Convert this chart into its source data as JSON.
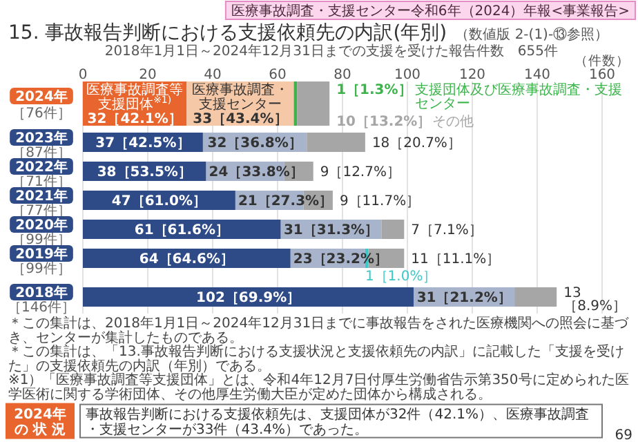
{
  "chart_data": {
    "type": "bar",
    "orientation": "horizontal",
    "stacked": true,
    "title": "15. 事故報告判断における支援依頼先の内訳(年別)",
    "subtitle": "（数値版 2-(1)-⑬参照）",
    "xlabel": "（件数）",
    "categories": [
      "2024年［76件］",
      "2023年［87件］",
      "2022年［71件］",
      "2021年［77件］",
      "2020年［99件］",
      "2019年［99件］",
      "2018年［146件］"
    ],
    "xlim": [
      0,
      160
    ],
    "xticks": [
      0,
      20,
      40,
      60,
      80,
      100,
      120,
      140,
      160
    ],
    "grid": "x",
    "series": [
      {
        "name": "医療事故調査等支援団体$^{※1)}$",
        "colors": [
          "#e8662e",
          "#2f4b87",
          "#2f4b87",
          "#2f4b87",
          "#2f4b87",
          "#2f4b87",
          "#2f4b87"
        ],
        "values": [
          32,
          37,
          38,
          47,
          61,
          64,
          102
        ],
        "value_labels": [
          "32［42.1%］",
          "37［42.5%］",
          "38［53.5%］",
          "47［61.0%］",
          "61［61.6%］",
          "64［64.6%］",
          "102［69.9%］"
        ]
      },
      {
        "name": "医療事故調査・支援センター",
        "colors": [
          "#f5c8a8",
          "#a8b4cb",
          "#a8b4cb",
          "#a8b4cb",
          "#a8b4cb",
          "#a8b4cb",
          "#a8b4cb"
        ],
        "values": [
          33,
          32,
          24,
          21,
          31,
          23,
          31
        ],
        "value_labels": [
          "33［43.4%］",
          "32［36.8%］",
          "24［33.8%］",
          "21［27.3%］",
          "31［31.3%］",
          "23［23.2%］",
          "31［21.2%］"
        ]
      },
      {
        "name": "支援団体及び医療事故調査・支援センター",
        "colors": [
          "#3cb44b",
          null,
          null,
          null,
          null,
          "#3cc8c8",
          null
        ],
        "values": [
          1,
          null,
          null,
          null,
          null,
          1,
          null
        ],
        "value_labels": [
          "1［1.3%］",
          null,
          null,
          null,
          null,
          "1［1.0%］",
          null
        ]
      },
      {
        "name": "その他",
        "colors": [
          "#a6a6a6",
          "#a6a6a6",
          "#a6a6a6",
          "#a6a6a6",
          "#a6a6a6",
          "#a6a6a6",
          "#a6a6a6"
        ],
        "values": [
          10,
          18,
          9,
          9,
          7,
          11,
          13
        ],
        "value_labels": [
          "10［13.2%］",
          "18［20.7%］",
          "9［12.7%］",
          "9［11.7%］",
          "7［7.1%］",
          "11［11.1%］",
          "13［8.9%］"
        ]
      }
    ],
    "annotations": [
      "医療事故調査・支援センター令和6年（2024）年報<事業報告>",
      "2018年1月1日～2024年12月31日までの支援を受けた報告件数　655件",
      "＊この集計は、2018年1月1日～2024年12月31日までに事故報告をされた医療機関への照会に基づき、センターが集計したものである。",
      "＊この集計は、「13.事故報告判断における支援状況と支援依頼先の内訳」に記載した「支援を受けた」の支援依頼先の内訳（年別）である。",
      "※1）「医療事故調査等支援団体」とは、令和4年12月7日付厚生労働省告示第350号に定められた医学医術に関する学術団体、その他厚生労働大臣が定めた団体から構成される。",
      "2024年の 状 況",
      "事故報告判断における支援依頼先は、支援団体が32件（42.1%）、医療事故調査・支援センターが33件（43.4%）であった。",
      "69"
    ]
  }
}
